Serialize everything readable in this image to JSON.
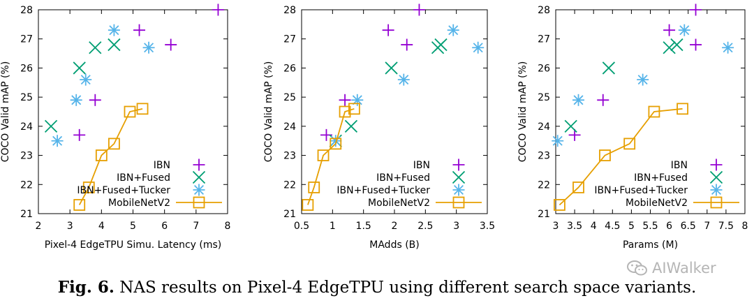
{
  "caption": {
    "label": "Fig. 6.",
    "text": "NAS results on Pixel-4 EdgeTPU using different search space variants."
  },
  "watermark": {
    "text": "AIWalker",
    "icon": "wechat-icon"
  },
  "colors": {
    "IBN": "#9400d3",
    "IBN+Fused": "#009e73",
    "IBN+Fused+Tucker": "#56b4e9",
    "MobileNetV2": "#e69f00"
  },
  "chart_data": [
    {
      "type": "scatter",
      "xlabel": "Pixel-4 EdgeTPU Simu. Latency (ms)",
      "ylabel": "COCO Valid mAP (%)",
      "xlim": [
        2,
        8
      ],
      "ylim": [
        21,
        28
      ],
      "xticks": [
        2,
        3,
        4,
        5,
        6,
        7,
        8
      ],
      "yticks": [
        21,
        22,
        23,
        24,
        25,
        26,
        27,
        28
      ],
      "legend": "bottom-right",
      "series": [
        {
          "name": "IBN",
          "marker": "plus",
          "points": [
            [
              3.3,
              23.7
            ],
            [
              3.8,
              24.9
            ],
            [
              5.2,
              27.3
            ],
            [
              6.2,
              26.8
            ],
            [
              7.7,
              28.0
            ]
          ]
        },
        {
          "name": "IBN+Fused",
          "marker": "cross",
          "points": [
            [
              2.4,
              24.0
            ],
            [
              3.3,
              26.0
            ],
            [
              3.8,
              26.7
            ],
            [
              4.4,
              26.8
            ]
          ]
        },
        {
          "name": "IBN+Fused+Tucker",
          "marker": "star",
          "points": [
            [
              2.6,
              23.5
            ],
            [
              3.2,
              24.9
            ],
            [
              3.5,
              25.6
            ],
            [
              4.4,
              27.3
            ],
            [
              5.5,
              26.7
            ]
          ]
        },
        {
          "name": "MobileNetV2",
          "marker": "square",
          "line": true,
          "points": [
            [
              3.3,
              21.3
            ],
            [
              3.6,
              21.9
            ],
            [
              4.0,
              23.0
            ],
            [
              4.4,
              23.4
            ],
            [
              4.9,
              24.5
            ],
            [
              5.3,
              24.6
            ]
          ]
        }
      ]
    },
    {
      "type": "scatter",
      "xlabel": "MAdds (B)",
      "ylabel": "COCO Valid mAP (%)",
      "xlim": [
        0.5,
        3.5
      ],
      "ylim": [
        21,
        28
      ],
      "xticks": [
        0.5,
        1,
        1.5,
        2,
        2.5,
        3,
        3.5
      ],
      "yticks": [
        21,
        22,
        23,
        24,
        25,
        26,
        27,
        28
      ],
      "legend": "bottom-right",
      "series": [
        {
          "name": "IBN",
          "marker": "plus",
          "points": [
            [
              0.9,
              23.7
            ],
            [
              1.2,
              24.9
            ],
            [
              1.9,
              27.3
            ],
            [
              2.2,
              26.8
            ],
            [
              2.4,
              28.0
            ]
          ]
        },
        {
          "name": "IBN+Fused",
          "marker": "cross",
          "points": [
            [
              1.05,
              23.5
            ],
            [
              1.3,
              24.0
            ],
            [
              1.95,
              26.0
            ],
            [
              2.7,
              26.7
            ],
            [
              2.75,
              26.8
            ]
          ]
        },
        {
          "name": "IBN+Fused+Tucker",
          "marker": "star",
          "points": [
            [
              1.05,
              23.5
            ],
            [
              1.4,
              24.9
            ],
            [
              2.15,
              25.6
            ],
            [
              2.95,
              27.3
            ],
            [
              3.35,
              26.7
            ]
          ]
        },
        {
          "name": "MobileNetV2",
          "marker": "square",
          "line": true,
          "points": [
            [
              0.6,
              21.3
            ],
            [
              0.7,
              21.9
            ],
            [
              0.85,
              23.0
            ],
            [
              1.05,
              23.4
            ],
            [
              1.2,
              24.5
            ],
            [
              1.35,
              24.6
            ]
          ]
        }
      ]
    },
    {
      "type": "scatter",
      "xlabel": "Params (M)",
      "ylabel": "COCO Valid mAP (%)",
      "xlim": [
        3,
        8
      ],
      "ylim": [
        21,
        28
      ],
      "xticks": [
        3,
        3.5,
        4,
        4.5,
        5,
        5.5,
        6,
        6.5,
        7,
        7.5,
        8
      ],
      "yticks": [
        21,
        22,
        23,
        24,
        25,
        26,
        27,
        28
      ],
      "legend": "bottom-right",
      "series": [
        {
          "name": "IBN",
          "marker": "plus",
          "points": [
            [
              3.5,
              23.7
            ],
            [
              4.25,
              24.9
            ],
            [
              6.0,
              27.3
            ],
            [
              6.7,
              26.8
            ],
            [
              6.7,
              28.0
            ]
          ]
        },
        {
          "name": "IBN+Fused",
          "marker": "cross",
          "points": [
            [
              3.4,
              24.0
            ],
            [
              4.4,
              26.0
            ],
            [
              6.0,
              26.7
            ],
            [
              6.2,
              26.8
            ]
          ]
        },
        {
          "name": "IBN+Fused+Tucker",
          "marker": "star",
          "points": [
            [
              3.05,
              23.5
            ],
            [
              3.6,
              24.9
            ],
            [
              5.3,
              25.6
            ],
            [
              6.4,
              27.3
            ],
            [
              7.55,
              26.7
            ]
          ]
        },
        {
          "name": "MobileNetV2",
          "marker": "square",
          "line": true,
          "points": [
            [
              3.1,
              21.3
            ],
            [
              3.6,
              21.9
            ],
            [
              4.3,
              23.0
            ],
            [
              4.95,
              23.4
            ],
            [
              5.6,
              24.5
            ],
            [
              6.35,
              24.6
            ]
          ]
        }
      ]
    }
  ]
}
